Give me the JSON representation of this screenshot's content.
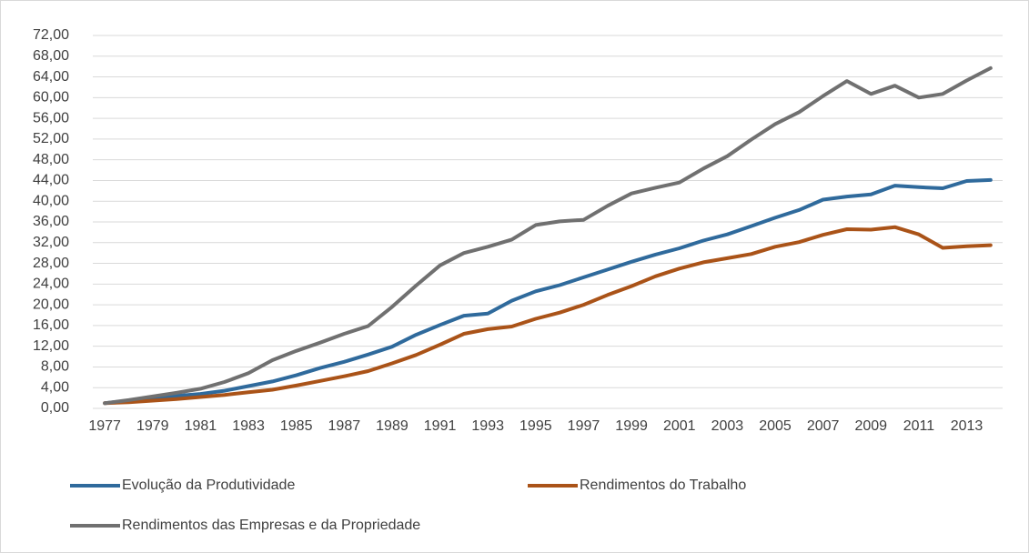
{
  "chart_data": {
    "type": "line",
    "categories": [
      "1977",
      null,
      "1979",
      null,
      "1981",
      null,
      "1983",
      null,
      "1985",
      null,
      "1987",
      null,
      "1989",
      null,
      "1991",
      null,
      "1993",
      null,
      "1995",
      null,
      "1997",
      null,
      "1999",
      null,
      "2001",
      null,
      "2003",
      null,
      "2005",
      null,
      "2007",
      null,
      "2009",
      null,
      "2011",
      null,
      "2013",
      null
    ],
    "series": [
      {
        "name": "Evolução da Produtividade",
        "color": "#2f6a9c",
        "values": [
          1.0,
          1.5,
          2.0,
          2.4,
          2.8,
          3.4,
          4.3,
          5.2,
          6.4,
          7.8,
          9.0,
          10.4,
          11.9,
          14.2,
          16.1,
          17.9,
          18.3,
          20.8,
          22.6,
          23.8,
          25.3,
          26.8,
          28.3,
          29.7,
          30.9,
          32.4,
          33.6,
          35.2,
          36.8,
          38.3,
          40.3,
          40.9,
          41.3,
          43.0,
          42.7,
          42.5,
          43.9,
          44.1
        ]
      },
      {
        "name": "Rendimentos do Trabalho",
        "color": "#aa5318",
        "values": [
          1.0,
          1.2,
          1.5,
          1.8,
          2.2,
          2.6,
          3.1,
          3.6,
          4.4,
          5.3,
          6.2,
          7.2,
          8.7,
          10.3,
          12.3,
          14.4,
          15.3,
          15.8,
          17.3,
          18.5,
          20.0,
          21.9,
          23.6,
          25.5,
          27.0,
          28.2,
          29.0,
          29.8,
          31.2,
          32.1,
          33.5,
          34.6,
          34.5,
          35.0,
          33.6,
          31.0,
          31.3,
          31.5
        ]
      },
      {
        "name": "Rendimentos das Empresas e da Propriedade",
        "color": "#707070",
        "values": [
          1.0,
          1.6,
          2.3,
          3.0,
          3.8,
          5.1,
          6.8,
          9.3,
          11.1,
          12.7,
          14.4,
          15.9,
          19.6,
          23.7,
          27.6,
          30.0,
          31.2,
          32.6,
          35.4,
          36.1,
          36.4,
          39.1,
          41.5,
          42.6,
          43.6,
          46.3,
          48.7,
          51.9,
          54.9,
          57.2,
          60.3,
          63.2,
          60.7,
          62.3,
          60.0,
          60.7,
          63.3,
          65.7
        ]
      }
    ],
    "ylim": [
      0,
      72
    ],
    "yticks": [
      {
        "value": 0,
        "label": "0,00"
      },
      {
        "value": 4,
        "label": "4,00"
      },
      {
        "value": 8,
        "label": "8,00"
      },
      {
        "value": 12,
        "label": "12,00"
      },
      {
        "value": 16,
        "label": "16,00"
      },
      {
        "value": 20,
        "label": "20,00"
      },
      {
        "value": 24,
        "label": "24,00"
      },
      {
        "value": 28,
        "label": "28,00"
      },
      {
        "value": 32,
        "label": "32,00"
      },
      {
        "value": 36,
        "label": "36,00"
      },
      {
        "value": 40,
        "label": "40,00"
      },
      {
        "value": 44,
        "label": "44,00"
      },
      {
        "value": 48,
        "label": "48,00"
      },
      {
        "value": 52,
        "label": "52,00"
      },
      {
        "value": 56,
        "label": "56,00"
      },
      {
        "value": 60,
        "label": "60,00"
      },
      {
        "value": 64,
        "label": "64,00"
      },
      {
        "value": 68,
        "label": "68,00"
      },
      {
        "value": 72,
        "label": "72,00"
      }
    ],
    "grid": true,
    "legend": "bottom"
  }
}
